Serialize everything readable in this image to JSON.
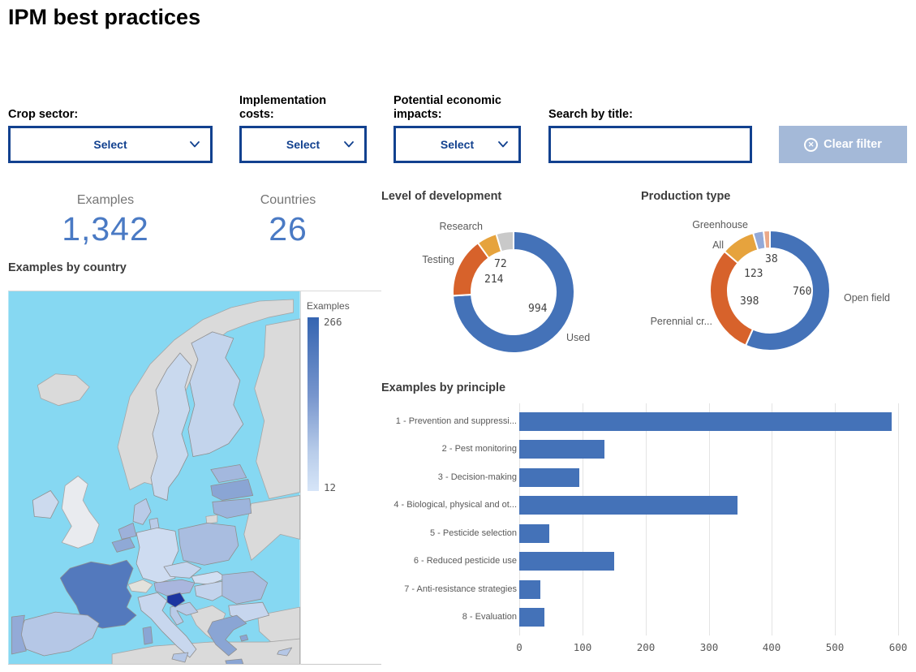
{
  "title": "IPM best practices",
  "filters": {
    "crop_sector_label": "Crop sector:",
    "implementation_costs_label": "Implementation costs:",
    "economic_impacts_label": "Potential economic impacts:",
    "select_value": "Select",
    "search_label": "Search by title:",
    "search_value": "",
    "clear_filter_label": "Clear filter"
  },
  "kpis": [
    {
      "label": "Examples",
      "value": "1,342"
    },
    {
      "label": "Countries",
      "value": "26"
    }
  ],
  "colors": {
    "accent_navy": "#12418f",
    "kpi_value_blue": "#4a7ac4",
    "bar_blue": "#4472b8",
    "clear_button_bg": "#a4b9d8",
    "sea_cyan": "#86d8f2",
    "non_eu_gray": "#dadada",
    "choropleth_max": "#1c34a0",
    "choropleth_min": "#d6e5f8"
  },
  "chart_data": [
    {
      "type": "pie",
      "donut": true,
      "title": "Level of development",
      "labels": [
        "Used",
        "Testing",
        "Research",
        ""
      ],
      "values": [
        994,
        214,
        72,
        62
      ],
      "colors": [
        "#4472b8",
        "#d7622b",
        "#e6a33d",
        "#c9c9c9"
      ],
      "note": "fourth slice is unlabeled (gray) in source; value inferred from KPI total 1342"
    },
    {
      "type": "pie",
      "donut": true,
      "title": "Production type",
      "labels": [
        "Open field",
        "Perennial cr...",
        "All",
        "Greenhouse",
        ""
      ],
      "values": [
        760,
        398,
        123,
        38,
        23
      ],
      "colors": [
        "#4472b8",
        "#d7622b",
        "#e6a33d",
        "#93a9d8",
        "#eba989"
      ],
      "note": "fifth slice is unlabeled (peach) in source; value inferred from KPI total 1342"
    },
    {
      "type": "bar",
      "orientation": "horizontal",
      "title": "Examples by principle",
      "categories": [
        "1 - Prevention and suppressi...",
        "2 - Pest monitoring",
        "3 - Decision-making",
        "4 - Biological, physical and ot...",
        "5 - Pesticide selection",
        "6 - Reduced pesticide use",
        "7 - Anti-resistance strategies",
        "8 - Evaluation"
      ],
      "values": [
        590,
        135,
        95,
        345,
        48,
        150,
        33,
        40
      ],
      "xlim": [
        0,
        600
      ],
      "xticks": [
        0,
        100,
        200,
        300,
        400,
        500,
        600
      ],
      "grid": true,
      "bar_color": "#4472b8"
    },
    {
      "type": "heatmap",
      "subtype": "choropleth-map",
      "title": "Examples by country",
      "region": "Europe",
      "legend": {
        "title": "Examples",
        "max": 266,
        "min": 12
      },
      "scale": [
        "#d6e5f8",
        "#1c34a0"
      ]
    }
  ],
  "map": {
    "section_title": "Examples by country",
    "legend_title": "Examples",
    "legend_max": "266",
    "legend_min": "12",
    "country_colors": {
      "iceland": "#dadada",
      "norway": "#dadada",
      "russia": "#dadada",
      "east-europe": "#dadada",
      "uk": "#e9ebef",
      "switzerland": "#e3e2dc",
      "balkans": "#dadada",
      "turkey": "#dadada",
      "africa": "#dadada",
      "kaliningrad": "#dadada",
      "sweden": "#c9d9ee",
      "finland": "#c3d4ec",
      "estonia": "#a3b8de",
      "latvia": "#8aa5d4",
      "lithuania": "#9db4dc",
      "denmark": "#b9cbe8",
      "ireland": "#ccdaee",
      "netherlands": "#9db1da",
      "belgium": "#8fa9d6",
      "germany": "#cedcf1",
      "poland": "#a9bde0",
      "czechia": "#c7d6ee",
      "slovakia": "#d2dff2",
      "austria": "#a9b6de",
      "hungary": "#c3d3ec",
      "romania": "#a9bde0",
      "bulgaria": "#c7d6ee",
      "france": "#5379bd",
      "spain": "#b5c7e6",
      "portugal": "#93aad7",
      "italy": "#c8d7ee",
      "sardinia": "#8aa5d4",
      "sicily": "#b5c7e6",
      "slovenia": "#1c34a0",
      "croatia": "#b9cbe8",
      "greece": "#8aa5d4",
      "greek-island": "#8aa5d4",
      "crete": "#8aa5d4",
      "cyprus": "#b5c7e6"
    }
  }
}
